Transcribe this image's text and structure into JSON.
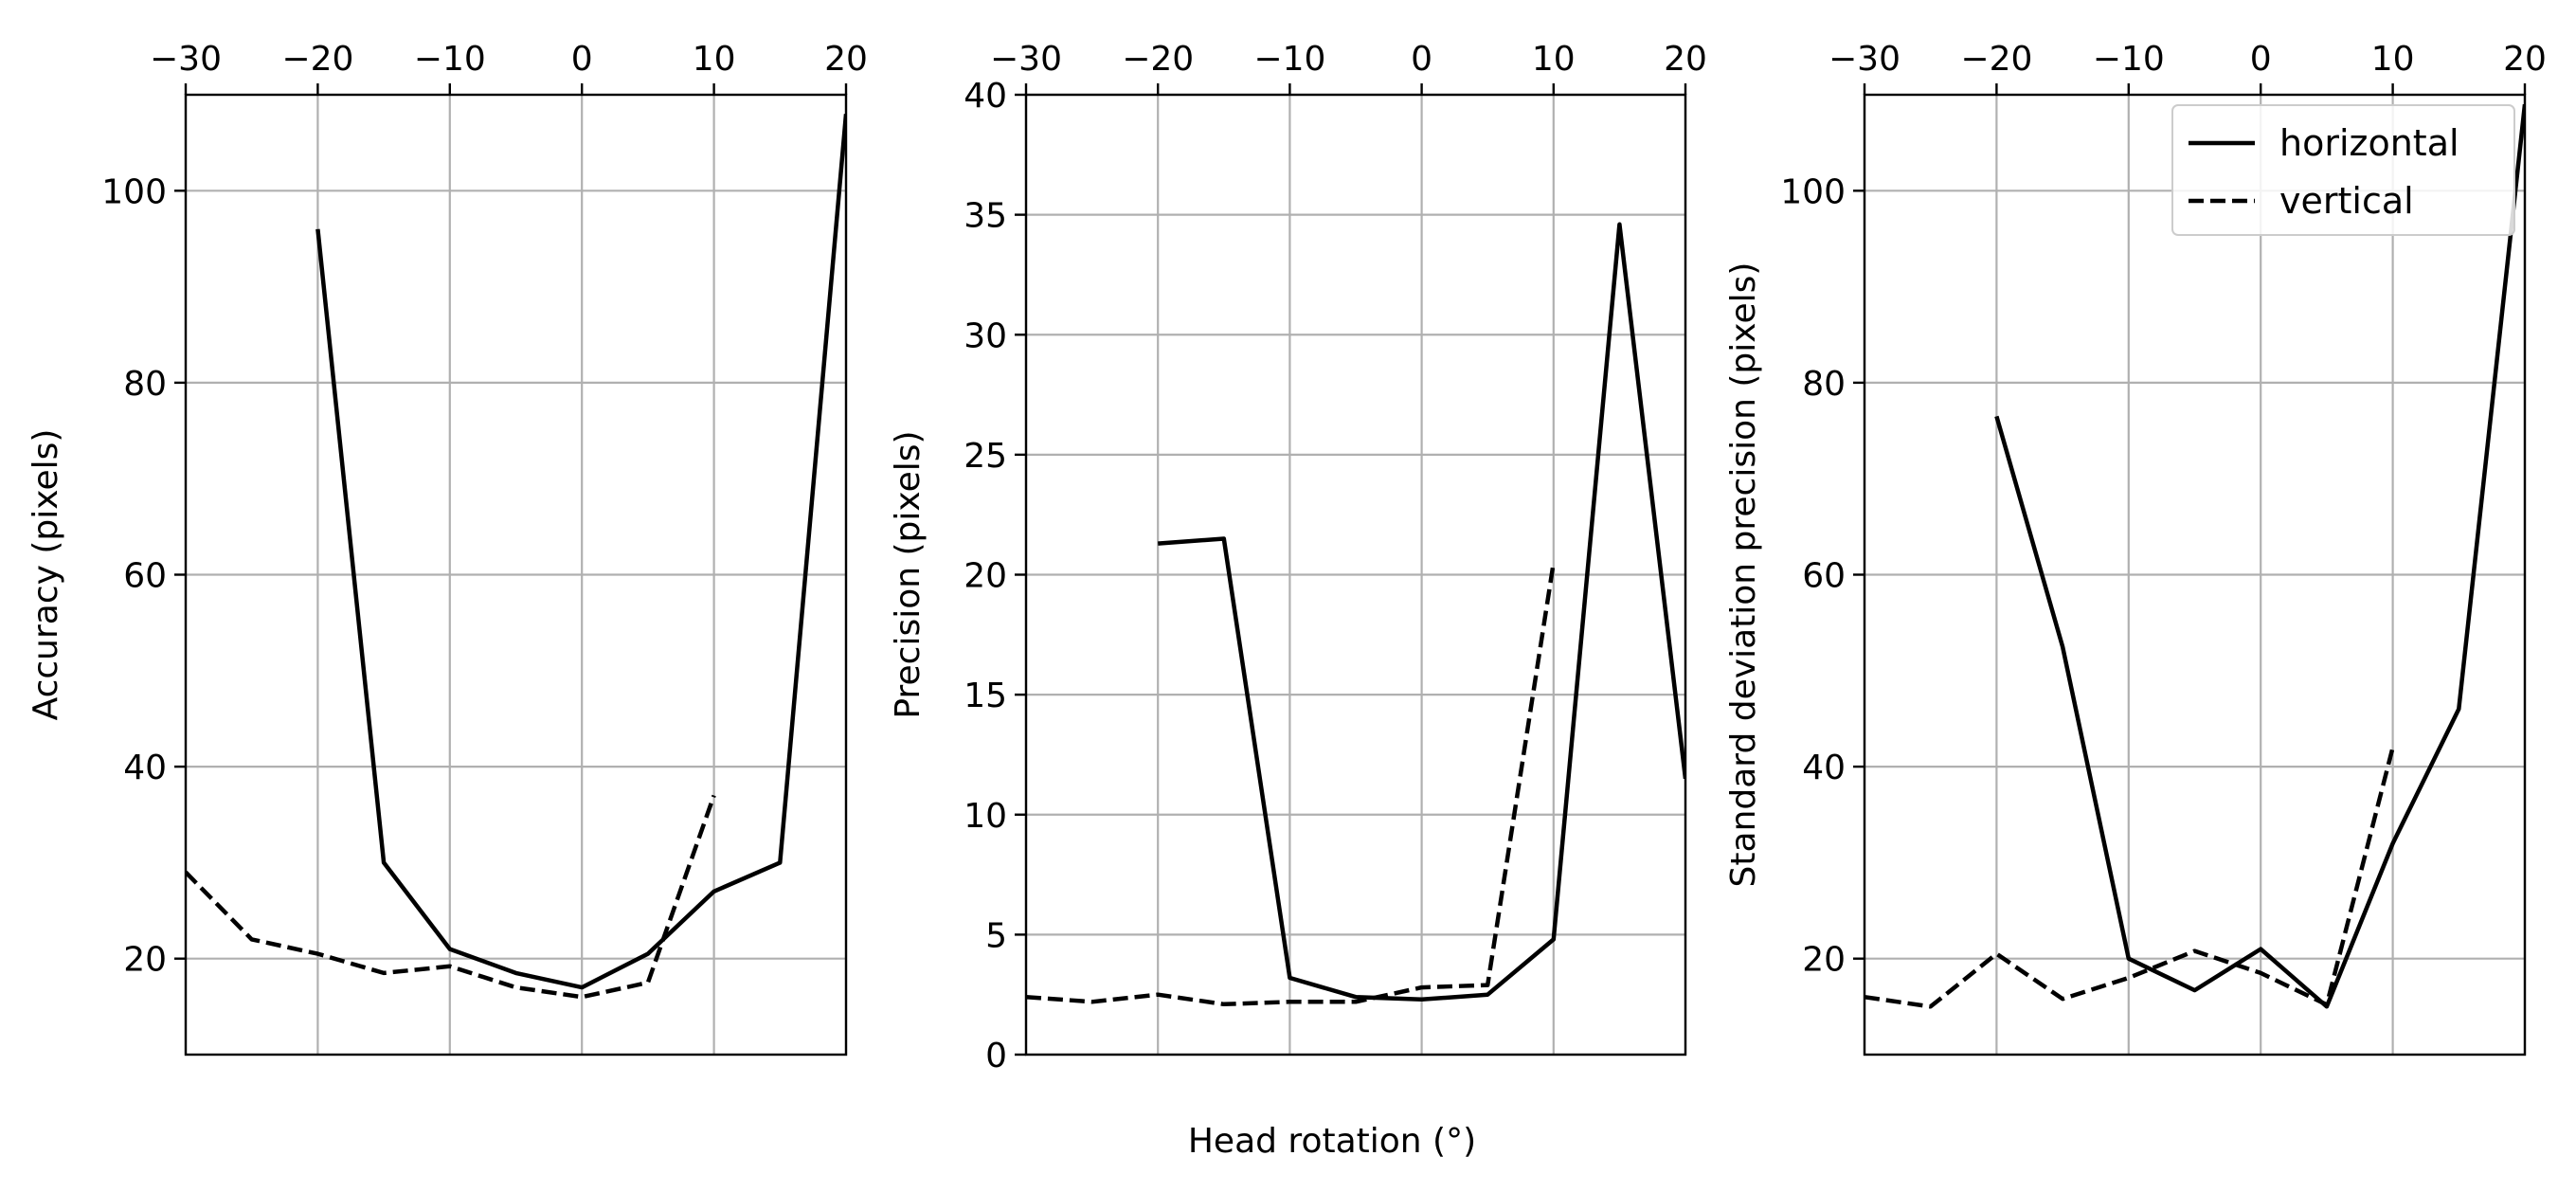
{
  "figure": {
    "xlabel": "Head rotation (°)"
  },
  "chart_data": [
    {
      "type": "line",
      "title": "",
      "xlabel": "",
      "ylabel": "Accuracy (pixels)",
      "xlim": [
        -30,
        20
      ],
      "ylim": [
        10,
        110
      ],
      "xticks": [
        -30,
        -20,
        -10,
        0,
        10,
        20
      ],
      "xtick_labels": [
        "−30",
        "−20",
        "−10",
        "0",
        "10",
        "20"
      ],
      "yticks": [
        20,
        40,
        60,
        80,
        100
      ],
      "ytick_labels": [
        "20",
        "40",
        "60",
        "80",
        "100"
      ],
      "x_axis_position": "top",
      "grid": true,
      "legend": null,
      "series": [
        {
          "style": "solid",
          "x": [
            -20,
            -15,
            -10,
            -5,
            0,
            5,
            10,
            15,
            20
          ],
          "y": [
            96,
            30,
            21,
            18.5,
            17,
            20.5,
            27,
            30,
            108
          ]
        },
        {
          "style": "dashed",
          "x": [
            -30,
            -25,
            -20,
            -15,
            -10,
            -5,
            0,
            5,
            10
          ],
          "y": [
            29,
            22,
            20.5,
            18.5,
            19.2,
            17,
            16,
            17.5,
            37
          ]
        }
      ]
    },
    {
      "type": "line",
      "title": "",
      "xlabel": "",
      "ylabel": "Precision (pixels)",
      "xlim": [
        -30,
        20
      ],
      "ylim": [
        0,
        40
      ],
      "xticks": [
        -30,
        -20,
        -10,
        0,
        10,
        20
      ],
      "xtick_labels": [
        "−30",
        "−20",
        "−10",
        "0",
        "10",
        "20"
      ],
      "yticks": [
        0,
        5,
        10,
        15,
        20,
        25,
        30,
        35,
        40
      ],
      "ytick_labels": [
        "0",
        "5",
        "10",
        "15",
        "20",
        "25",
        "30",
        "35",
        "40"
      ],
      "x_axis_position": "top",
      "grid": true,
      "legend": null,
      "series": [
        {
          "style": "solid",
          "x": [
            -20,
            -15,
            -10,
            -5,
            0,
            5,
            10,
            15,
            20
          ],
          "y": [
            21.3,
            21.5,
            3.2,
            2.4,
            2.3,
            2.5,
            4.8,
            34.6,
            11.5
          ]
        },
        {
          "style": "dashed",
          "x": [
            -30,
            -25,
            -20,
            -15,
            -10,
            -5,
            0,
            5,
            10
          ],
          "y": [
            2.4,
            2.2,
            2.5,
            2.1,
            2.2,
            2.2,
            2.8,
            2.9,
            20.5
          ]
        }
      ]
    },
    {
      "type": "line",
      "title": "",
      "xlabel": "",
      "ylabel": "Standard deviation precision (pixels)",
      "xlim": [
        -30,
        20
      ],
      "ylim": [
        10,
        110
      ],
      "xticks": [
        -30,
        -20,
        -10,
        0,
        10,
        20
      ],
      "xtick_labels": [
        "−30",
        "−20",
        "−10",
        "0",
        "10",
        "20"
      ],
      "yticks": [
        20,
        40,
        60,
        80,
        100
      ],
      "ytick_labels": [
        "20",
        "40",
        "60",
        "80",
        "100"
      ],
      "x_axis_position": "top",
      "grid": true,
      "legend": "top-right",
      "series": [
        {
          "name": "horizontal",
          "style": "solid",
          "x": [
            -20,
            -15,
            -10,
            -5,
            0,
            5,
            10,
            15,
            20
          ],
          "y": [
            76.5,
            52.5,
            20,
            16.7,
            21,
            15,
            32,
            46,
            109
          ]
        },
        {
          "name": "vertical",
          "style": "dashed",
          "x": [
            -30,
            -25,
            -20,
            -15,
            -10,
            -5,
            0,
            5,
            10
          ],
          "y": [
            16,
            15,
            20.5,
            15.8,
            18,
            20.8,
            18.5,
            15.2,
            42
          ]
        }
      ]
    }
  ]
}
